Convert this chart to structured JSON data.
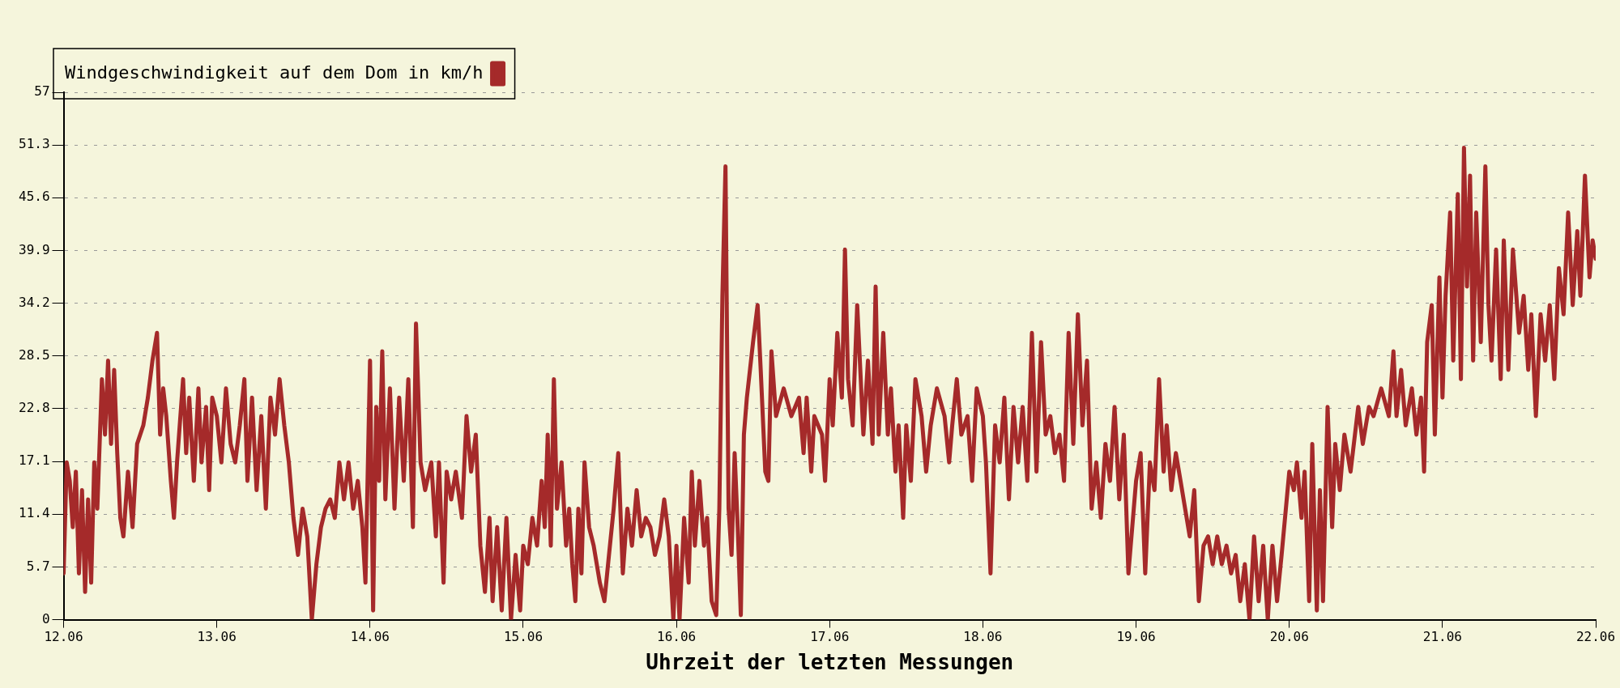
{
  "chart_data": {
    "type": "line",
    "xlabel": "Uhrzeit der letzten Messungen",
    "legend": "top left",
    "grid": "y",
    "marker": "none",
    "line_style": "solid",
    "xlim": [
      "--06-12",
      "--06-22"
    ],
    "xticks": [
      {
        "value": "--06-12",
        "label": "12.06"
      },
      {
        "value": "--06-13",
        "label": "13.06"
      },
      {
        "value": "--06-14",
        "label": "14.06"
      },
      {
        "value": "--06-15",
        "label": "15.06"
      },
      {
        "value": "--06-16",
        "label": "16.06"
      },
      {
        "value": "--06-17",
        "label": "17.06"
      },
      {
        "value": "--06-18",
        "label": "18.06"
      },
      {
        "value": "--06-19",
        "label": "19.06"
      },
      {
        "value": "--06-20",
        "label": "20.06"
      },
      {
        "value": "--06-21",
        "label": "21.06"
      },
      {
        "value": "--06-22",
        "label": "22.06"
      }
    ],
    "ylim": [
      0,
      57
    ],
    "yticks": [
      0,
      5.7,
      11.4,
      17.1,
      22.8,
      28.5,
      34.2,
      39.9,
      45.6,
      51.3,
      57
    ],
    "x": [
      "--06-12T00:00",
      "--06-12T00:29",
      "--06-12T00:58",
      "--06-12T01:26",
      "--06-12T01:55",
      "--06-12T02:24",
      "--06-12T02:53",
      "--06-12T03:22",
      "--06-12T03:50",
      "--06-12T04:19",
      "--06-12T04:48",
      "--06-12T05:17",
      "--06-12T06:00",
      "--06-12T06:29",
      "--06-12T06:58",
      "--06-12T07:26",
      "--06-12T07:55",
      "--06-12T08:24",
      "--06-12T08:53",
      "--06-12T09:22",
      "--06-12T10:05",
      "--06-12T10:48",
      "--06-12T11:31",
      "--06-12T12:29",
      "--06-12T13:12",
      "--06-12T13:55",
      "--06-12T14:38",
      "--06-12T15:07",
      "--06-12T15:36",
      "--06-12T16:05",
      "--06-12T16:48",
      "--06-12T17:17",
      "--06-12T17:46",
      "--06-12T18:43",
      "--06-12T19:12",
      "--06-12T19:41",
      "--06-12T20:24",
      "--06-12T21:07",
      "--06-12T21:36",
      "--06-12T22:19",
      "--06-12T22:48",
      "--06-12T23:17",
      "--06-13T00:00",
      "--06-13T00:43",
      "--06-13T01:26",
      "--06-13T02:10",
      "--06-13T02:53",
      "--06-13T03:36",
      "--06-13T04:19",
      "--06-13T04:48",
      "--06-13T05:31",
      "--06-13T06:14",
      "--06-13T06:58",
      "--06-13T07:41",
      "--06-13T08:24",
      "--06-13T09:07",
      "--06-13T09:50",
      "--06-13T10:34",
      "--06-13T11:17",
      "--06-13T12:00",
      "--06-13T12:43",
      "--06-13T13:26",
      "--06-13T14:10",
      "--06-13T14:53",
      "--06-13T15:36",
      "--06-13T16:19",
      "--06-13T17:02",
      "--06-13T17:46",
      "--06-13T18:29",
      "--06-13T19:12",
      "--06-13T19:55",
      "--06-13T20:38",
      "--06-13T21:22",
      "--06-13T22:05",
      "--06-13T22:48",
      "--06-13T23:17",
      "--06-14T00:00",
      "--06-14T00:29",
      "--06-14T00:58",
      "--06-14T01:26",
      "--06-14T01:55",
      "--06-14T02:24",
      "--06-14T03:07",
      "--06-14T03:50",
      "--06-14T04:34",
      "--06-14T05:17",
      "--06-14T06:00",
      "--06-14T06:43",
      "--06-14T07:12",
      "--06-14T07:55",
      "--06-14T08:38",
      "--06-14T09:36",
      "--06-14T10:19",
      "--06-14T10:48",
      "--06-14T11:31",
      "--06-14T12:00",
      "--06-14T12:43",
      "--06-14T13:26",
      "--06-14T14:24",
      "--06-14T15:07",
      "--06-14T15:50",
      "--06-14T16:34",
      "--06-14T17:17",
      "--06-14T18:00",
      "--06-14T18:43",
      "--06-14T19:12",
      "--06-14T19:55",
      "--06-14T20:38",
      "--06-14T21:22",
      "--06-14T22:05",
      "--06-14T22:48",
      "--06-14T23:31",
      "--06-15T00:00",
      "--06-15T00:43",
      "--06-15T01:26",
      "--06-15T02:10",
      "--06-15T02:53",
      "--06-15T03:22",
      "--06-15T03:50",
      "--06-15T04:19",
      "--06-15T04:48",
      "--06-15T05:17",
      "--06-15T06:00",
      "--06-15T06:43",
      "--06-15T07:12",
      "--06-15T07:41",
      "--06-15T08:10",
      "--06-15T08:38",
      "--06-15T09:07",
      "--06-15T09:36",
      "--06-15T10:19",
      "--06-15T11:02",
      "--06-15T12:00",
      "--06-15T12:43",
      "--06-15T13:26",
      "--06-15T14:10",
      "--06-15T14:53",
      "--06-15T15:36",
      "--06-15T16:19",
      "--06-15T17:02",
      "--06-15T17:46",
      "--06-15T18:29",
      "--06-15T19:12",
      "--06-15T19:55",
      "--06-15T20:38",
      "--06-15T21:22",
      "--06-15T22:05",
      "--06-15T22:48",
      "--06-15T23:31",
      "--06-16T00:00",
      "--06-16T00:29",
      "--06-16T01:12",
      "--06-16T01:55",
      "--06-16T02:24",
      "--06-16T02:53",
      "--06-16T03:36",
      "--06-16T04:19",
      "--06-16T04:48",
      "--06-16T05:31",
      "--06-16T06:14",
      "--06-16T06:43",
      "--06-16T07:12",
      "--06-16T07:41",
      "--06-16T08:10",
      "--06-16T08:38",
      "--06-16T09:07",
      "--06-16T09:36",
      "--06-16T10:05",
      "--06-16T10:34",
      "--06-16T11:02",
      "--06-16T12:00",
      "--06-16T12:43",
      "--06-16T13:12",
      "--06-16T13:55",
      "--06-16T14:24",
      "--06-16T14:53",
      "--06-16T15:36",
      "--06-16T16:48",
      "--06-16T18:00",
      "--06-16T19:12",
      "--06-16T19:55",
      "--06-16T20:24",
      "--06-16T21:07",
      "--06-16T21:36",
      "--06-16T22:48",
      "--06-16T23:17",
      "--06-17T00:00",
      "--06-17T00:29",
      "--06-17T01:12",
      "--06-17T01:55",
      "--06-17T02:24",
      "--06-17T02:53",
      "--06-17T03:36",
      "--06-17T04:19",
      "--06-17T04:48",
      "--06-17T05:17",
      "--06-17T06:00",
      "--06-17T06:43",
      "--06-17T07:12",
      "--06-17T07:41",
      "--06-17T08:24",
      "--06-17T09:07",
      "--06-17T09:36",
      "--06-17T10:19",
      "--06-17T10:48",
      "--06-17T11:31",
      "--06-17T12:00",
      "--06-17T12:43",
      "--06-17T13:26",
      "--06-17T14:24",
      "--06-17T15:07",
      "--06-17T15:50",
      "--06-17T16:48",
      "--06-17T18:00",
      "--06-17T18:43",
      "--06-17T19:12",
      "--06-17T19:55",
      "--06-17T20:38",
      "--06-17T21:36",
      "--06-17T22:19",
      "--06-17T23:02",
      "--06-18T00:00",
      "--06-18T00:29",
      "--06-18T01:12",
      "--06-18T01:55",
      "--06-18T02:38",
      "--06-18T03:22",
      "--06-18T04:05",
      "--06-18T04:48",
      "--06-18T05:31",
      "--06-18T06:14",
      "--06-18T06:58",
      "--06-18T07:41",
      "--06-18T08:24",
      "--06-18T09:07",
      "--06-18T09:50",
      "--06-18T10:34",
      "--06-18T11:17",
      "--06-18T12:00",
      "--06-18T12:43",
      "--06-18T13:26",
      "--06-18T14:10",
      "--06-18T14:53",
      "--06-18T15:36",
      "--06-18T16:19",
      "--06-18T17:02",
      "--06-18T17:46",
      "--06-18T18:29",
      "--06-18T19:12",
      "--06-18T19:55",
      "--06-18T20:38",
      "--06-18T21:22",
      "--06-18T22:05",
      "--06-18T22:48",
      "--06-19T00:00",
      "--06-19T00:43",
      "--06-19T01:26",
      "--06-19T02:10",
      "--06-19T02:53",
      "--06-19T03:36",
      "--06-19T04:19",
      "--06-19T04:48",
      "--06-19T05:31",
      "--06-19T06:14",
      "--06-19T06:58",
      "--06-19T07:41",
      "--06-19T08:24",
      "--06-19T09:07",
      "--06-19T09:50",
      "--06-19T10:34",
      "--06-19T11:17",
      "--06-19T12:00",
      "--06-19T12:43",
      "--06-19T13:26",
      "--06-19T14:10",
      "--06-19T14:53",
      "--06-19T15:36",
      "--06-19T16:19",
      "--06-19T17:02",
      "--06-19T17:46",
      "--06-19T18:29",
      "--06-19T19:12",
      "--06-19T19:55",
      "--06-19T20:38",
      "--06-19T21:22",
      "--06-19T22:05",
      "--06-19T22:48",
      "--06-20T00:00",
      "--06-20T00:43",
      "--06-20T01:12",
      "--06-20T01:55",
      "--06-20T02:24",
      "--06-20T03:07",
      "--06-20T03:36",
      "--06-20T04:19",
      "--06-20T04:48",
      "--06-20T05:17",
      "--06-20T06:00",
      "--06-20T06:43",
      "--06-20T07:12",
      "--06-20T07:55",
      "--06-20T08:38",
      "--06-20T09:36",
      "--06-20T10:48",
      "--06-20T11:31",
      "--06-20T12:29",
      "--06-20T13:12",
      "--06-20T14:24",
      "--06-20T15:36",
      "--06-20T16:19",
      "--06-20T16:48",
      "--06-20T17:31",
      "--06-20T18:14",
      "--06-20T19:12",
      "--06-20T19:55",
      "--06-20T20:38",
      "--06-20T21:07",
      "--06-20T21:36",
      "--06-20T22:19",
      "--06-20T22:48",
      "--06-20T23:31",
      "--06-21T00:00",
      "--06-21T00:29",
      "--06-21T01:12",
      "--06-21T01:41",
      "--06-21T02:24",
      "--06-21T02:53",
      "--06-21T03:22",
      "--06-21T03:50",
      "--06-21T04:19",
      "--06-21T04:48",
      "--06-21T05:17",
      "--06-21T06:00",
      "--06-21T06:43",
      "--06-21T07:12",
      "--06-21T07:41",
      "--06-21T08:24",
      "--06-21T09:07",
      "--06-21T09:36",
      "--06-21T10:19",
      "--06-21T11:02",
      "--06-21T12:00",
      "--06-21T12:43",
      "--06-21T13:26",
      "--06-21T13:55",
      "--06-21T14:38",
      "--06-21T15:22",
      "--06-21T16:05",
      "--06-21T16:48",
      "--06-21T17:31",
      "--06-21T18:14",
      "--06-21T18:58",
      "--06-21T19:41",
      "--06-21T20:24",
      "--06-21T21:07",
      "--06-21T21:36",
      "--06-21T22:19",
      "--06-21T23:02",
      "--06-21T23:31",
      "--06-22T00:00"
    ],
    "series": [
      {
        "name": "Windgeschwindigkeit auf dem Dom in km/h",
        "color": "#a52a2a",
        "values": [
          5,
          17,
          15,
          10,
          16,
          5,
          14,
          3,
          13,
          4,
          17,
          12,
          26,
          20,
          28,
          19,
          27,
          18,
          11,
          9,
          16,
          10,
          19,
          21,
          24,
          28,
          31,
          20,
          25,
          22,
          15,
          11,
          17,
          26,
          18,
          24,
          15,
          25,
          17,
          23,
          14,
          24,
          22,
          17,
          25,
          19,
          17,
          21,
          26,
          15,
          24,
          14,
          22,
          12,
          24,
          20,
          26,
          21,
          17,
          11,
          7,
          12,
          9,
          0,
          6,
          10,
          12,
          13,
          11,
          17,
          13,
          17,
          12,
          15,
          10,
          4,
          28,
          1,
          23,
          15,
          29,
          13,
          25,
          12,
          24,
          15,
          26,
          10,
          32,
          17,
          14,
          17,
          9,
          17,
          4,
          16,
          13,
          16,
          11,
          22,
          16,
          20,
          8,
          3,
          11,
          2,
          10,
          1,
          11,
          0,
          7,
          1,
          8,
          6,
          11,
          8,
          15,
          10,
          20,
          8,
          26,
          12,
          17,
          8,
          12,
          6,
          2,
          12,
          5,
          17,
          10,
          8,
          4,
          2,
          7,
          12,
          18,
          5,
          12,
          8,
          14,
          9,
          11,
          10,
          7,
          9,
          13,
          9,
          0,
          8,
          0,
          11,
          4,
          16,
          8,
          15,
          8,
          11,
          2,
          0.5,
          12,
          35,
          49,
          12,
          7,
          18,
          10,
          0.5,
          20,
          24,
          30,
          34,
          27,
          16,
          15,
          29,
          22,
          25,
          22,
          24,
          18,
          24,
          16,
          22,
          20,
          15,
          26,
          21,
          31,
          24,
          40,
          26,
          21,
          34,
          27,
          20,
          28,
          19,
          36,
          20,
          31,
          20,
          25,
          16,
          21,
          11,
          21,
          15,
          26,
          22,
          16,
          21,
          25,
          22,
          17,
          21,
          26,
          20,
          22,
          15,
          25,
          22,
          17,
          5,
          21,
          17,
          24,
          13,
          23,
          17,
          23,
          15,
          31,
          16,
          30,
          20,
          22,
          18,
          20,
          15,
          31,
          19,
          33,
          21,
          28,
          12,
          17,
          11,
          19,
          15,
          23,
          13,
          20,
          5,
          15,
          18,
          5,
          17,
          14,
          26,
          16,
          21,
          14,
          18,
          15,
          12,
          9,
          14,
          2,
          8,
          9,
          6,
          9,
          6,
          8,
          5,
          7,
          2,
          6,
          0,
          9,
          2,
          8,
          0,
          8,
          2,
          7,
          16,
          14,
          17,
          11,
          16,
          2,
          19,
          1,
          14,
          2,
          23,
          10,
          19,
          14,
          20,
          16,
          23,
          19,
          23,
          22,
          25,
          22,
          29,
          22,
          27,
          21,
          25,
          20,
          24,
          16,
          30,
          34,
          20,
          37,
          24,
          35,
          44,
          28,
          46,
          26,
          51,
          36,
          48,
          28,
          44,
          30,
          49,
          34,
          28,
          40,
          26,
          41,
          27,
          40,
          31,
          35,
          27,
          33,
          22,
          33,
          28,
          34,
          26,
          38,
          33,
          44,
          34,
          42,
          35,
          48,
          37,
          41,
          39
        ]
      }
    ]
  }
}
